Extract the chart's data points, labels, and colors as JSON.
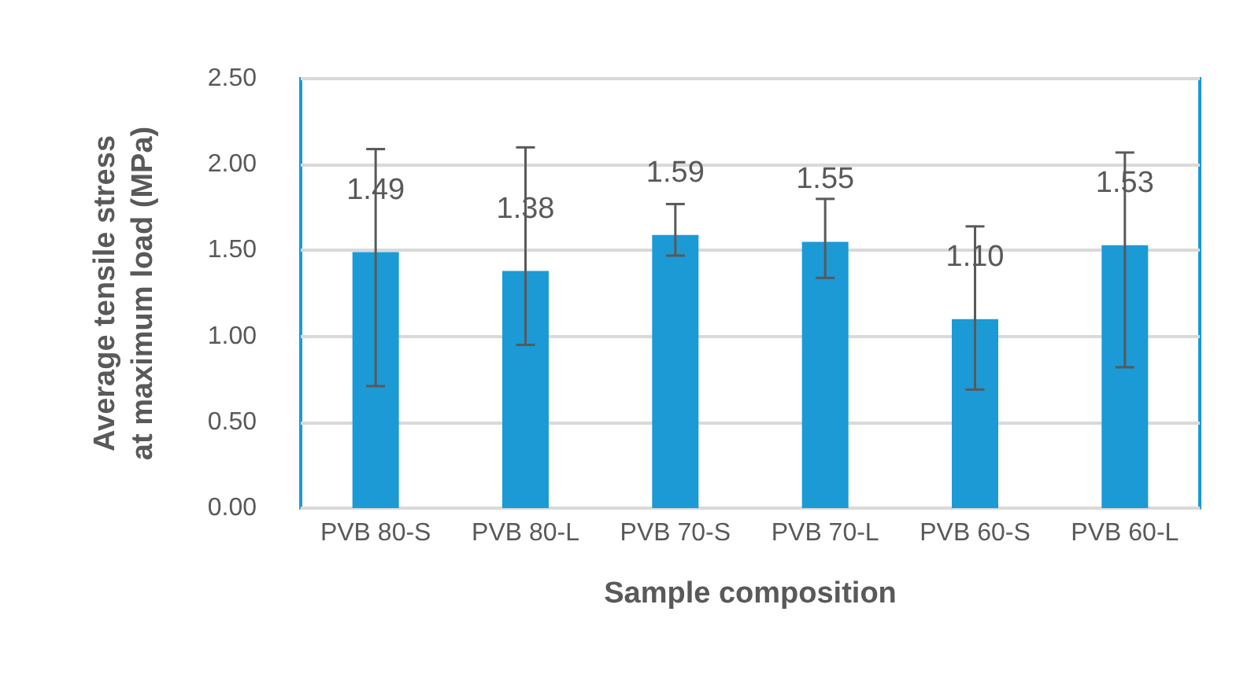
{
  "chart_data": {
    "type": "bar",
    "xlabel": "Sample composition",
    "ylabel": "Average tensile stress\nat maximum load (MPa)",
    "categories": [
      "PVB 80-S",
      "PVB 80-L",
      "PVB 70-S",
      "PVB 70-L",
      "PVB 60-S",
      "PVB 60-L"
    ],
    "values": [
      1.49,
      1.38,
      1.59,
      1.55,
      1.1,
      1.53
    ],
    "errors": [
      [
        0.71,
        2.09
      ],
      [
        0.95,
        2.1
      ],
      [
        1.47,
        1.77
      ],
      [
        1.34,
        1.8
      ],
      [
        0.69,
        1.64
      ],
      [
        0.82,
        2.07
      ]
    ],
    "color": "#1b9ad6",
    "ylim": [
      0,
      2.5
    ],
    "yticks": [
      {
        "value": 0,
        "label": "0.00"
      },
      {
        "value": 0.5,
        "label": "0.50"
      },
      {
        "value": 1,
        "label": "1.00"
      },
      {
        "value": 1.5,
        "label": "1.50"
      },
      {
        "value": 2,
        "label": "2.00"
      },
      {
        "value": 2.5,
        "label": "2.50"
      }
    ],
    "value_labels": [
      "1.49",
      "1.38",
      "1.59",
      "1.55",
      "1.10",
      "1.53"
    ],
    "grid": "y"
  }
}
